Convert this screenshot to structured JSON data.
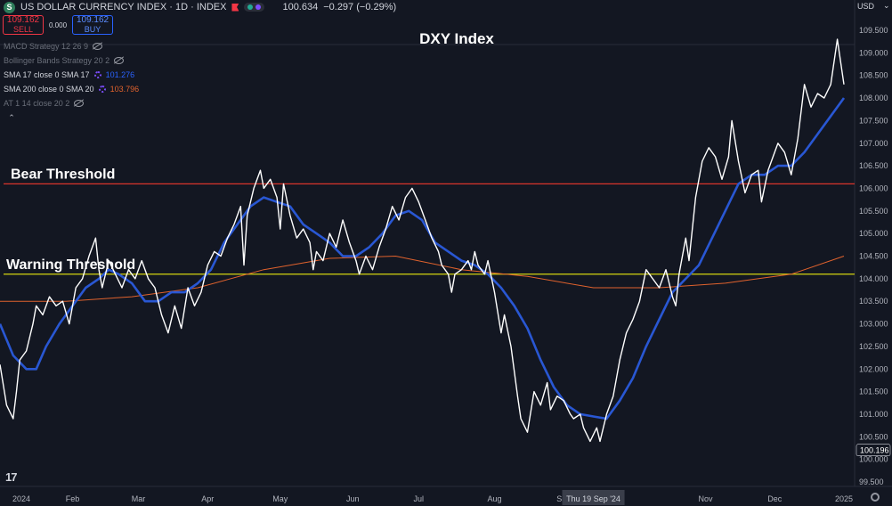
{
  "header": {
    "symbol_icon": "S",
    "title": "US DOLLAR CURRENCY INDEX · 1D · INDEX",
    "last": "100.634",
    "change": "−0.297 (−0.29%)"
  },
  "trade": {
    "sell_price": "109.162",
    "sell_label": "SELL",
    "spread": "0.000",
    "buy_price": "109.162",
    "buy_label": "BUY"
  },
  "studies": [
    {
      "label": "MACD Strategy 12 26 9",
      "value": ""
    },
    {
      "label": "Bollinger Bands Strategy 20 2",
      "value": ""
    },
    {
      "label": "SMA 17 close 0 SMA 17",
      "value": "101.276"
    },
    {
      "label": "SMA 200 close 0 SMA 20",
      "value": "103.796"
    },
    {
      "label": "AT 1 14 close 20 2",
      "value": ""
    }
  ],
  "currency": "USD",
  "tv_logo": "17",
  "colors": {
    "background": "#131722",
    "price": "#ffffff",
    "sma17": "#2957d3",
    "sma200": "#e0622d",
    "bear": "#d9352b",
    "warning": "#d4d410"
  },
  "chart_data": {
    "type": "line",
    "title": "DXY Index",
    "ylim": [
      99.5,
      109.5
    ],
    "y_ticks": [
      "109.500",
      "109.000",
      "108.500",
      "108.000",
      "107.500",
      "107.000",
      "106.500",
      "106.000",
      "105.500",
      "105.000",
      "104.500",
      "104.000",
      "103.500",
      "103.000",
      "102.500",
      "102.000",
      "101.500",
      "101.000",
      "100.500",
      "100.000",
      "99.500"
    ],
    "x_ticks": [
      {
        "label": "2024",
        "x": 0
      },
      {
        "label": "Feb",
        "x": 22
      },
      {
        "label": "Mar",
        "x": 42
      },
      {
        "label": "Apr",
        "x": 63
      },
      {
        "label": "May",
        "x": 85
      },
      {
        "label": "Jun",
        "x": 107
      },
      {
        "label": "Jul",
        "x": 127
      },
      {
        "label": "Aug",
        "x": 150
      },
      {
        "label": "Sep",
        "x": 171
      },
      {
        "label": "Nov",
        "x": 214
      },
      {
        "label": "Dec",
        "x": 235
      },
      {
        "label": "2025",
        "x": 256
      }
    ],
    "crosshair_label": {
      "text": "Thu 19 Sep '24",
      "x": 180
    },
    "price_badge": "100.196",
    "hlines": [
      {
        "name": "Bear Threshold",
        "value": 106.1,
        "color": "#d9352b"
      },
      {
        "name": "Warning Threshold",
        "value": 104.1,
        "color": "#d4d410"
      }
    ],
    "series": [
      {
        "name": "DXY",
        "color": "#ffffff",
        "width": 1.4,
        "points": [
          [
            0,
            102.1
          ],
          [
            2,
            101.2
          ],
          [
            4,
            100.9
          ],
          [
            5,
            101.5
          ],
          [
            6,
            102.2
          ],
          [
            8,
            102.4
          ],
          [
            10,
            103.0
          ],
          [
            11,
            103.4
          ],
          [
            13,
            103.2
          ],
          [
            15,
            103.6
          ],
          [
            17,
            103.4
          ],
          [
            19,
            103.5
          ],
          [
            21,
            103.0
          ],
          [
            23,
            103.8
          ],
          [
            25,
            104.0
          ],
          [
            27,
            104.5
          ],
          [
            29,
            104.9
          ],
          [
            30,
            104.2
          ],
          [
            31,
            103.8
          ],
          [
            33,
            104.4
          ],
          [
            35,
            104.1
          ],
          [
            37,
            103.8
          ],
          [
            39,
            104.2
          ],
          [
            41,
            104.0
          ],
          [
            43,
            104.4
          ],
          [
            45,
            104.0
          ],
          [
            47,
            103.8
          ],
          [
            49,
            103.2
          ],
          [
            51,
            102.8
          ],
          [
            53,
            103.4
          ],
          [
            55,
            102.9
          ],
          [
            57,
            103.8
          ],
          [
            59,
            103.4
          ],
          [
            61,
            103.7
          ],
          [
            63,
            104.3
          ],
          [
            65,
            104.6
          ],
          [
            67,
            104.5
          ],
          [
            69,
            104.9
          ],
          [
            71,
            105.2
          ],
          [
            73,
            105.6
          ],
          [
            74,
            104.3
          ],
          [
            75,
            105.4
          ],
          [
            77,
            106.0
          ],
          [
            79,
            106.4
          ],
          [
            80,
            106.0
          ],
          [
            82,
            106.2
          ],
          [
            84,
            105.8
          ],
          [
            85,
            105.1
          ],
          [
            86,
            106.1
          ],
          [
            88,
            105.4
          ],
          [
            90,
            104.9
          ],
          [
            92,
            105.1
          ],
          [
            94,
            104.8
          ],
          [
            95,
            104.2
          ],
          [
            96,
            104.6
          ],
          [
            98,
            104.4
          ],
          [
            100,
            105.0
          ],
          [
            102,
            104.7
          ],
          [
            104,
            105.3
          ],
          [
            106,
            104.8
          ],
          [
            108,
            104.4
          ],
          [
            109,
            104.1
          ],
          [
            111,
            104.5
          ],
          [
            113,
            104.2
          ],
          [
            115,
            104.7
          ],
          [
            117,
            105.1
          ],
          [
            119,
            105.6
          ],
          [
            121,
            105.3
          ],
          [
            123,
            105.8
          ],
          [
            125,
            106.0
          ],
          [
            127,
            105.7
          ],
          [
            129,
            105.3
          ],
          [
            131,
            104.9
          ],
          [
            133,
            104.6
          ],
          [
            134,
            104.3
          ],
          [
            136,
            104.1
          ],
          [
            137,
            103.7
          ],
          [
            138,
            104.1
          ],
          [
            140,
            104.2
          ],
          [
            142,
            104.4
          ],
          [
            143,
            104.2
          ],
          [
            144,
            104.6
          ],
          [
            145,
            104.3
          ],
          [
            147,
            104.1
          ],
          [
            148,
            104.4
          ],
          [
            150,
            103.7
          ],
          [
            152,
            102.8
          ],
          [
            153,
            103.2
          ],
          [
            155,
            102.5
          ],
          [
            157,
            101.4
          ],
          [
            158,
            100.9
          ],
          [
            160,
            100.6
          ],
          [
            162,
            101.5
          ],
          [
            164,
            101.2
          ],
          [
            166,
            101.7
          ],
          [
            167,
            101.1
          ],
          [
            169,
            101.4
          ],
          [
            171,
            101.3
          ],
          [
            173,
            101.0
          ],
          [
            174,
            100.9
          ],
          [
            176,
            101.0
          ],
          [
            177,
            100.7
          ],
          [
            179,
            100.4
          ],
          [
            181,
            100.7
          ],
          [
            182,
            100.4
          ],
          [
            184,
            101.0
          ],
          [
            186,
            101.4
          ],
          [
            188,
            102.2
          ],
          [
            190,
            102.8
          ],
          [
            192,
            103.1
          ],
          [
            194,
            103.5
          ],
          [
            196,
            104.2
          ],
          [
            198,
            104.0
          ],
          [
            200,
            103.8
          ],
          [
            202,
            104.2
          ],
          [
            204,
            103.6
          ],
          [
            205,
            103.4
          ],
          [
            206,
            104.1
          ],
          [
            208,
            104.9
          ],
          [
            209,
            104.4
          ],
          [
            210,
            105.1
          ],
          [
            211,
            105.8
          ],
          [
            213,
            106.6
          ],
          [
            215,
            106.9
          ],
          [
            217,
            106.7
          ],
          [
            219,
            106.2
          ],
          [
            221,
            106.7
          ],
          [
            222,
            107.5
          ],
          [
            224,
            106.6
          ],
          [
            226,
            105.9
          ],
          [
            228,
            106.3
          ],
          [
            230,
            106.4
          ],
          [
            231,
            105.7
          ],
          [
            233,
            106.4
          ],
          [
            235,
            106.8
          ],
          [
            236,
            107.0
          ],
          [
            238,
            106.8
          ],
          [
            240,
            106.3
          ],
          [
            242,
            107.1
          ],
          [
            244,
            108.3
          ],
          [
            246,
            107.8
          ],
          [
            248,
            108.1
          ],
          [
            250,
            108.0
          ],
          [
            252,
            108.3
          ],
          [
            254,
            109.3
          ],
          [
            256,
            108.3
          ]
        ]
      },
      {
        "name": "SMA 17",
        "color": "#2957d3",
        "width": 2.6,
        "points": [
          [
            0,
            103.0
          ],
          [
            4,
            102.3
          ],
          [
            8,
            102.0
          ],
          [
            11,
            102.0
          ],
          [
            14,
            102.5
          ],
          [
            18,
            103.0
          ],
          [
            22,
            103.4
          ],
          [
            26,
            103.8
          ],
          [
            30,
            104.0
          ],
          [
            33,
            104.2
          ],
          [
            36,
            104.1
          ],
          [
            40,
            103.9
          ],
          [
            44,
            103.5
          ],
          [
            48,
            103.5
          ],
          [
            52,
            103.7
          ],
          [
            56,
            103.7
          ],
          [
            60,
            103.9
          ],
          [
            64,
            104.2
          ],
          [
            68,
            104.8
          ],
          [
            72,
            105.2
          ],
          [
            76,
            105.6
          ],
          [
            80,
            105.8
          ],
          [
            84,
            105.7
          ],
          [
            88,
            105.6
          ],
          [
            92,
            105.2
          ],
          [
            96,
            105.0
          ],
          [
            100,
            104.8
          ],
          [
            104,
            104.5
          ],
          [
            108,
            104.5
          ],
          [
            112,
            104.7
          ],
          [
            116,
            105.0
          ],
          [
            120,
            105.4
          ],
          [
            124,
            105.5
          ],
          [
            128,
            105.3
          ],
          [
            132,
            104.8
          ],
          [
            136,
            104.6
          ],
          [
            140,
            104.4
          ],
          [
            144,
            104.3
          ],
          [
            148,
            104.1
          ],
          [
            152,
            103.8
          ],
          [
            156,
            103.4
          ],
          [
            160,
            102.9
          ],
          [
            164,
            102.2
          ],
          [
            168,
            101.6
          ],
          [
            172,
            101.2
          ],
          [
            176,
            101.0
          ],
          [
            180,
            100.95
          ],
          [
            184,
            100.9
          ],
          [
            188,
            101.3
          ],
          [
            192,
            101.8
          ],
          [
            196,
            102.5
          ],
          [
            200,
            103.1
          ],
          [
            204,
            103.7
          ],
          [
            208,
            104.0
          ],
          [
            212,
            104.3
          ],
          [
            216,
            104.9
          ],
          [
            220,
            105.5
          ],
          [
            224,
            106.1
          ],
          [
            228,
            106.3
          ],
          [
            232,
            106.3
          ],
          [
            236,
            106.5
          ],
          [
            240,
            106.5
          ],
          [
            244,
            106.8
          ],
          [
            248,
            107.2
          ],
          [
            252,
            107.6
          ],
          [
            256,
            108.0
          ]
        ]
      },
      {
        "name": "SMA 200",
        "color": "#e0622d",
        "width": 1.0,
        "points": [
          [
            0,
            103.5
          ],
          [
            20,
            103.5
          ],
          [
            40,
            103.6
          ],
          [
            60,
            103.8
          ],
          [
            80,
            104.2
          ],
          [
            100,
            104.45
          ],
          [
            120,
            104.5
          ],
          [
            140,
            104.2
          ],
          [
            160,
            104.05
          ],
          [
            180,
            103.8
          ],
          [
            200,
            103.8
          ],
          [
            220,
            103.9
          ],
          [
            240,
            104.1
          ],
          [
            256,
            104.5
          ]
        ]
      }
    ]
  }
}
